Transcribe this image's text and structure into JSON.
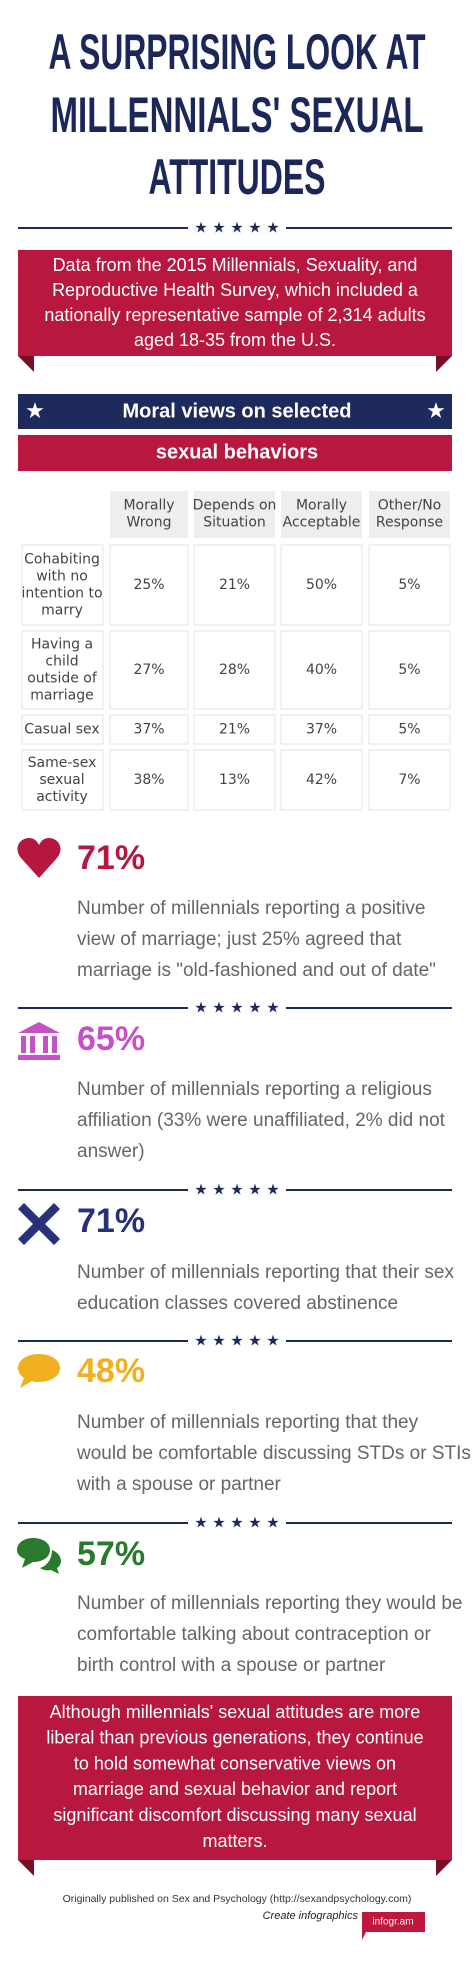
{
  "header": {
    "title": [
      "A SURPRISING LOOK AT",
      "MILLENNIALS'  SEXUAL",
      "ATTITUDES"
    ],
    "intro": [
      "Data from the 2015 Millennials, Sexuality, and",
      "Reproductive Health Survey, which included a",
      "nationally representative sample of 2,314 adults",
      "aged 18-35 from the U.S."
    ]
  },
  "table": {
    "title": "Moral views on selected",
    "subtitle": "sexual behaviors",
    "columns": [
      [
        "Morally",
        "Wrong"
      ],
      [
        "Depends on",
        "Situation"
      ],
      [
        "Morally",
        "Acceptable"
      ],
      [
        "Other/No",
        "Response"
      ]
    ],
    "rows": [
      {
        "label": [
          "Cohabiting",
          "with no",
          "intention to",
          "marry"
        ],
        "cells": [
          "25%",
          "21%",
          "50%",
          "5%"
        ]
      },
      {
        "label": [
          "Having a",
          "child",
          "outside of",
          "marriage"
        ],
        "cells": [
          "27%",
          "28%",
          "40%",
          "5%"
        ]
      },
      {
        "label": [
          "Casual sex"
        ],
        "cells": [
          "37%",
          "21%",
          "37%",
          "5%"
        ]
      },
      {
        "label": [
          "Same-sex",
          "sexual",
          "activity"
        ],
        "cells": [
          "38%",
          "13%",
          "42%",
          "7%"
        ]
      }
    ]
  },
  "stats": [
    {
      "percent": "71%",
      "color": "#b5173f",
      "text": [
        "Number of millennials reporting a positive",
        "view of marriage; just 25% agreed that",
        "marriage is \"old-fashioned and out of date\""
      ]
    },
    {
      "percent": "65%",
      "color": "#c650c8",
      "text": [
        "Number of millennials reporting a religious",
        "affiliation (33% were unaffiliated, 2% did not",
        "answer)"
      ]
    },
    {
      "percent": "71%",
      "color": "#283079",
      "text": [
        "Number of millennials reporting that their sex",
        "education classes covered abstinence"
      ]
    },
    {
      "percent": "48%",
      "color": "#f0b020",
      "text": [
        "Number of millennials reporting that they",
        "would be comfortable discussing STDs or STIs",
        "with a spouse or partner"
      ]
    },
    {
      "percent": "57%",
      "color": "#2a7a2e",
      "text": [
        "Number of millennials reporting they would be",
        "comfortable talking about contraception or",
        "birth control with a spouse or partner"
      ]
    }
  ],
  "conclusion": [
    "Although millennials' sexual attitudes are more",
    "liberal than previous generations, they continue",
    "to hold somewhat conservative views on",
    "marriage and sexual behavior and report",
    "significant discomfort discussing many sexual",
    "matters."
  ],
  "footer": {
    "source": "Originally published on Sex and Psychology (http://sexandpsychology.com)",
    "cta": "Create infographics",
    "brand": "infogr.am"
  }
}
